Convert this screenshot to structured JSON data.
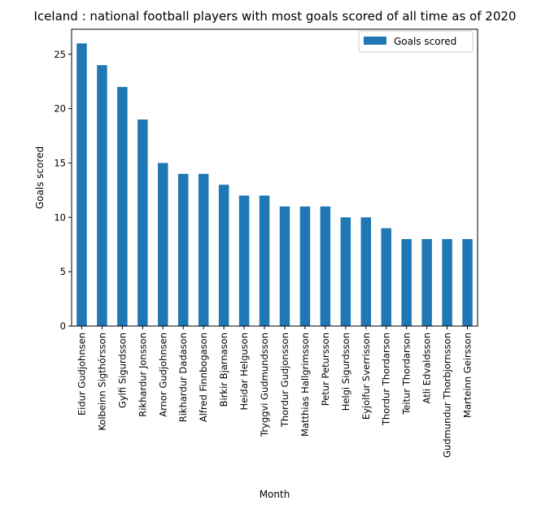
{
  "chart_data": {
    "type": "bar",
    "title": "Iceland : national football players with most goals scored of all time as of 2020",
    "xlabel": "Month",
    "ylabel": "Goals scored",
    "ylim": [
      0,
      27.3
    ],
    "yticks": [
      0,
      5,
      10,
      15,
      20,
      25
    ],
    "grid": false,
    "legend_position": "top-right",
    "bar_color": "#1f77b4",
    "categories": [
      "Eidur Gudjohnsen",
      "Kolbeinn Sigthórsson",
      "Gylfi Sigurdsson",
      "Rikhardur Jonsson",
      "Arnor Gudjohnsen",
      "Rikhardur Dadason",
      "Alfred Finnbogason",
      "Birkir Bjarnason",
      "Heidar Helguson",
      "Tryggvi Gudmundsson",
      "Thordur Gudjonsson",
      "Matthias Hallgrimsson",
      "Petur Petursson",
      "Helgi Sigurdsson",
      "Eyjolfur Sverrisson",
      "Thordur Thordarson",
      "Teitur Thordarson",
      "Atli Edvaldsson",
      "Gudmundur Thorbjornsson",
      "Marteinn Geirsson"
    ],
    "series": [
      {
        "name": "Goals scored",
        "values": [
          26,
          24,
          22,
          19,
          15,
          14,
          14,
          13,
          12,
          12,
          11,
          11,
          11,
          10,
          10,
          9,
          8,
          8,
          8,
          8
        ]
      }
    ]
  }
}
